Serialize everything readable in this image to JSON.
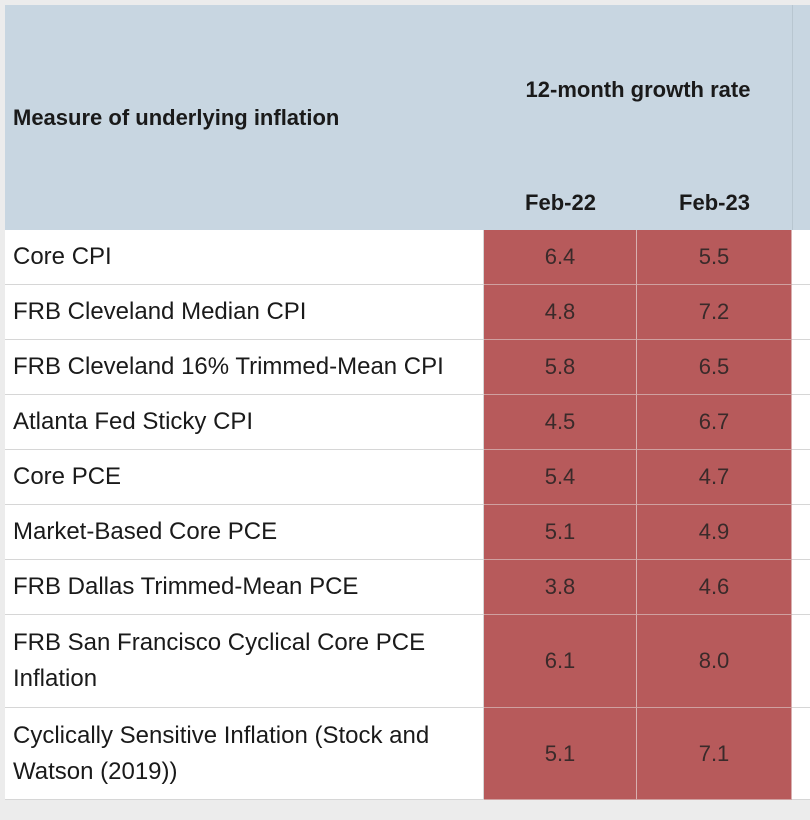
{
  "header": {
    "measure": "Measure of underlying inflation",
    "group": "12-month growth rate",
    "columns": [
      "Feb-22",
      "Feb-23"
    ]
  },
  "rows": [
    {
      "measure": "Core CPI",
      "values": [
        "6.4",
        "5.5"
      ]
    },
    {
      "measure": "FRB Cleveland Median CPI",
      "values": [
        "4.8",
        "7.2"
      ]
    },
    {
      "measure": "FRB Cleveland 16% Trimmed-Mean CPI",
      "values": [
        "5.8",
        "6.5"
      ]
    },
    {
      "measure": "Atlanta Fed Sticky CPI",
      "values": [
        "4.5",
        "6.7"
      ]
    },
    {
      "measure": "Core PCE",
      "values": [
        "5.4",
        "4.7"
      ]
    },
    {
      "measure": "Market-Based Core PCE",
      "values": [
        "5.1",
        "4.9"
      ]
    },
    {
      "measure": "FRB Dallas Trimmed-Mean PCE",
      "values": [
        "3.8",
        "4.6"
      ]
    },
    {
      "measure": "FRB San Francisco Cyclical Core PCE Inflation",
      "values": [
        "6.1",
        "8.0"
      ]
    },
    {
      "measure": "Cyclically Sensitive Inflation (Stock and Watson (2019))",
      "values": [
        "5.1",
        "7.1"
      ]
    }
  ]
}
